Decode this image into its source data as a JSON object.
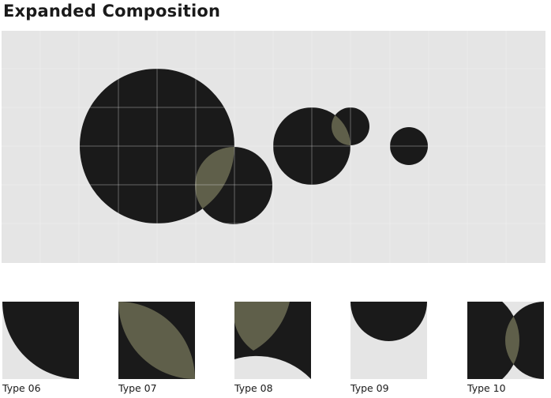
{
  "page": {
    "title": "Expanded Composition"
  },
  "colors": {
    "background": "#e5e5e5",
    "grid": "#f4f4f4",
    "shape": "#1a1a1a",
    "overlap": "#5f5f4a"
  },
  "tiles": [
    {
      "label": "Type 06"
    },
    {
      "label": "Type 07"
    },
    {
      "label": "Type 08"
    },
    {
      "label": "Type 09"
    },
    {
      "label": "Type 10"
    }
  ]
}
